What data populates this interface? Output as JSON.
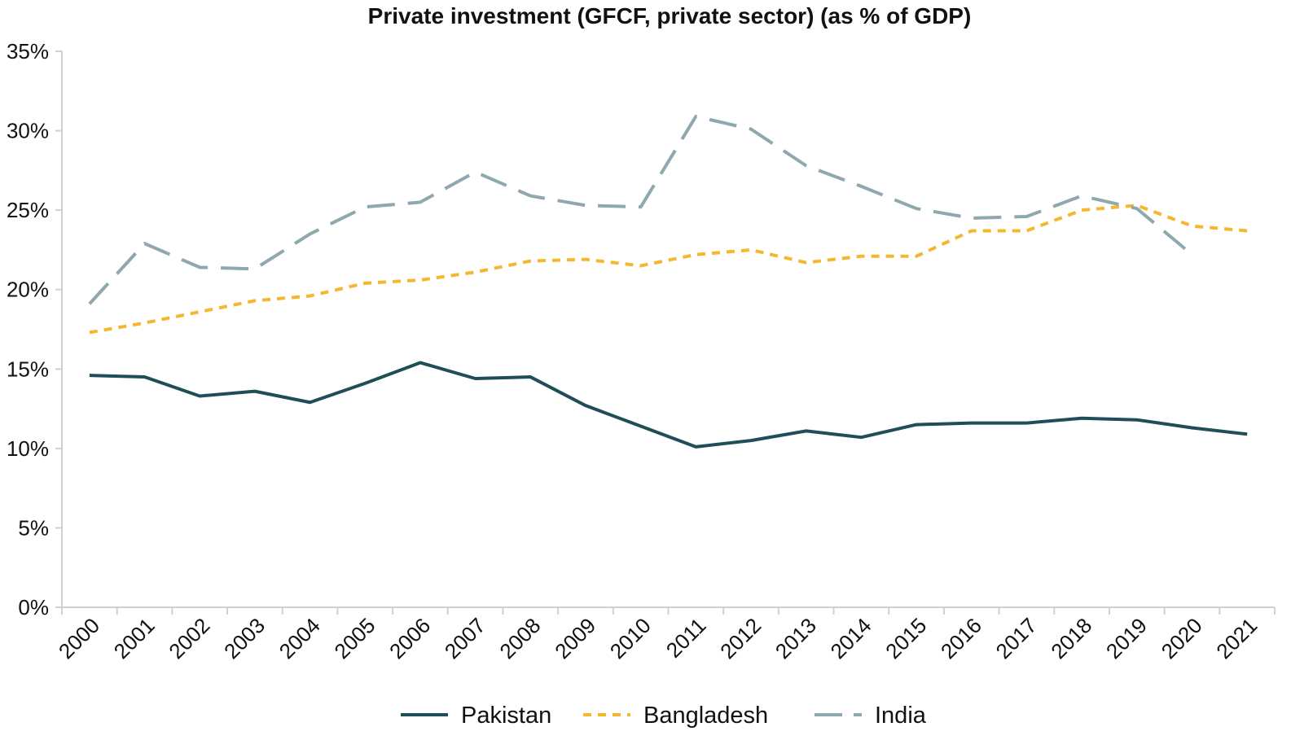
{
  "chart_data": {
    "type": "line",
    "title": "Private investment (GFCF, private sector) (as % of GDP)",
    "xlabel": "",
    "ylabel": "",
    "x": [
      "2000",
      "2001",
      "2002",
      "2003",
      "2004",
      "2005",
      "2006",
      "2007",
      "2008",
      "2009",
      "2010",
      "2011",
      "2012",
      "2013",
      "2014",
      "2015",
      "2016",
      "2017",
      "2018",
      "2019",
      "2020",
      "2021"
    ],
    "ylim": [
      0,
      35
    ],
    "yticks": [
      0,
      5,
      10,
      15,
      20,
      25,
      30,
      35
    ],
    "ytick_labels": [
      "0%",
      "5%",
      "10%",
      "15%",
      "20%",
      "25%",
      "30%",
      "35%"
    ],
    "grid": false,
    "legend_position": "bottom",
    "series": [
      {
        "name": "Pakistan",
        "color": "#1f4e57",
        "style": "solid",
        "values": [
          14.6,
          14.5,
          13.3,
          13.6,
          12.9,
          14.1,
          15.4,
          14.4,
          14.5,
          12.7,
          11.4,
          10.1,
          10.5,
          11.1,
          10.7,
          11.5,
          11.6,
          11.6,
          11.9,
          11.8,
          11.3,
          10.9
        ]
      },
      {
        "name": "Bangladesh",
        "color": "#f5b730",
        "style": "dashed",
        "values": [
          17.3,
          17.9,
          18.6,
          19.3,
          19.6,
          20.4,
          20.6,
          21.1,
          21.8,
          21.9,
          21.5,
          22.2,
          22.5,
          21.7,
          22.1,
          22.1,
          23.7,
          23.7,
          25.0,
          25.3,
          24.0,
          23.7
        ]
      },
      {
        "name": "India",
        "color": "#8fa7ae",
        "style": "longdash",
        "values": [
          19.1,
          22.9,
          21.4,
          21.3,
          23.5,
          25.2,
          25.5,
          27.4,
          25.9,
          25.3,
          25.2,
          30.9,
          30.1,
          27.8,
          26.5,
          25.1,
          24.5,
          24.6,
          25.9,
          25.1,
          22.2,
          null
        ]
      }
    ]
  }
}
